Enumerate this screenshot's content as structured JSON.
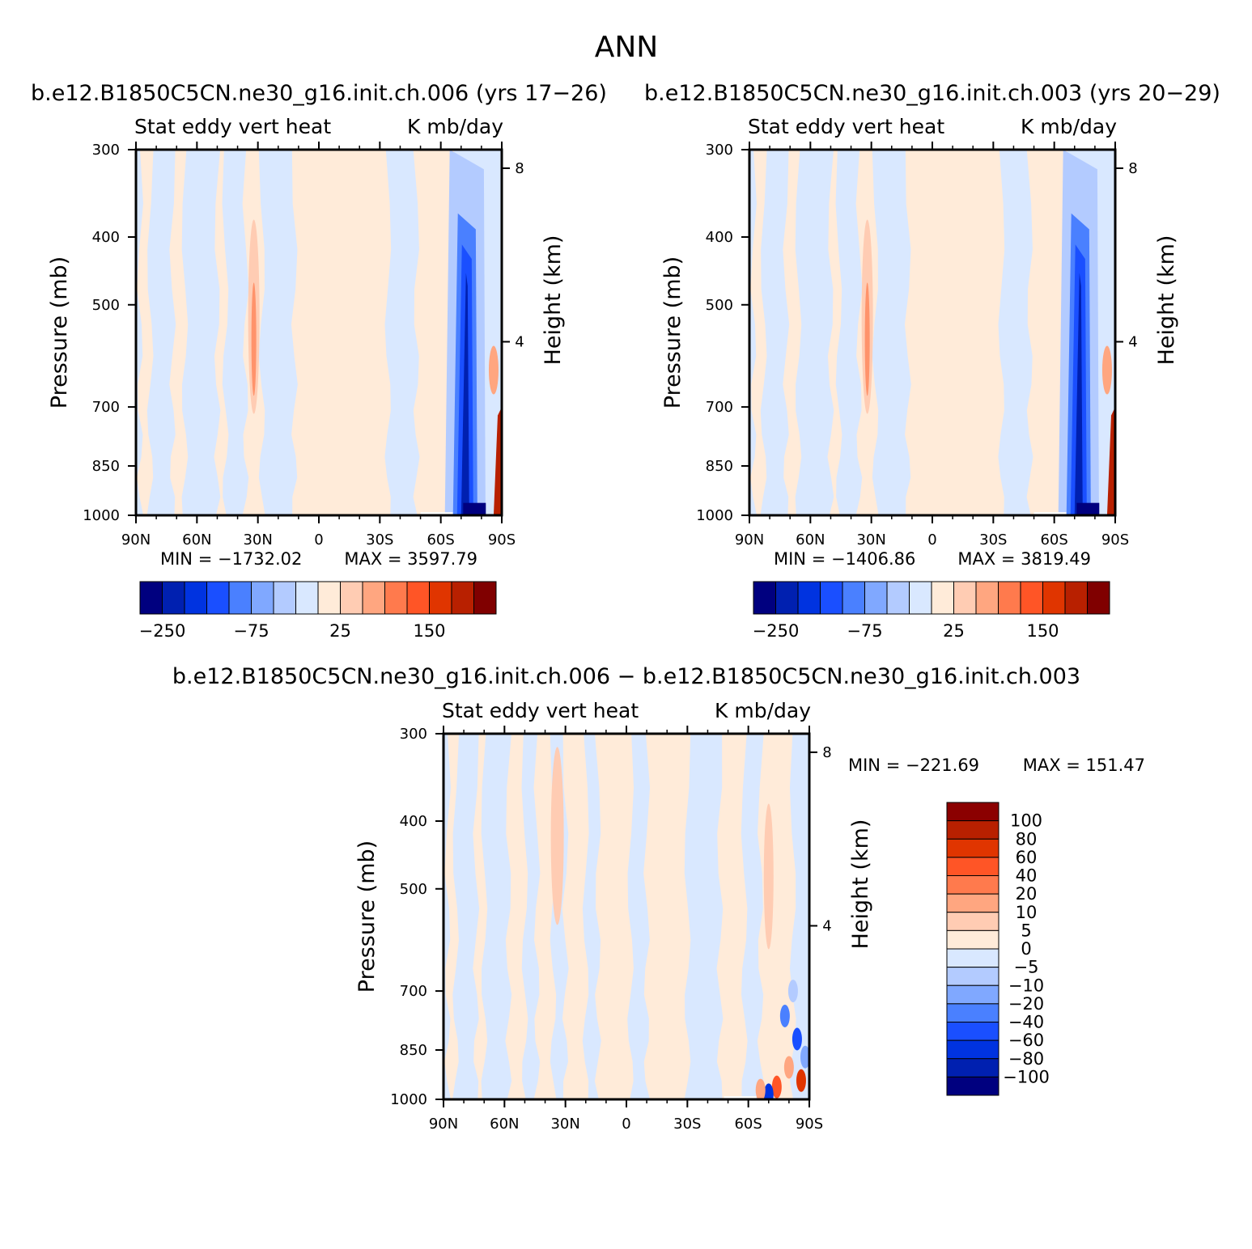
{
  "figure": {
    "title": "ANN"
  },
  "chart_data": [
    {
      "type": "heatmap",
      "title": "b.e12.B1850C5CN.ne30_g16.init.ch.006 (yrs 17-26)",
      "variable": "Stat eddy vert heat",
      "units": "K mb/day",
      "xlabel": "",
      "ylabel": "Pressure (mb)",
      "ylabel_right": "Height (km)",
      "x_ticks": [
        "90N",
        "60N",
        "30N",
        "0",
        "30S",
        "60S",
        "90S"
      ],
      "y_ticks": [
        300,
        400,
        500,
        700,
        850,
        1000
      ],
      "y_right_ticks": [
        8,
        4
      ],
      "xlim": [
        90,
        -90
      ],
      "ylim": [
        1000,
        300
      ],
      "y_scale": "log",
      "min_label": "MIN = -1732.02",
      "max_label": "MAX = 3597.79",
      "colorbar": {
        "orientation": "horizontal",
        "colors": [
          "#00007f",
          "#0020b0",
          "#0033e0",
          "#1a4fff",
          "#4a80ff",
          "#80a8ff",
          "#b3cbff",
          "#d9e8ff",
          "#ffebd9",
          "#ffccb3",
          "#ffa680",
          "#ff7a4d",
          "#ff5526",
          "#e03500",
          "#b82000",
          "#800000"
        ],
        "tick_labels": [
          "-250",
          "-75",
          "25",
          "150"
        ]
      },
      "fields": {
        "background": "#d9e8ff",
        "positive_bands": [
          "#ffebd9",
          "#ffccb3",
          "#ffa680",
          "#ff7a4d"
        ],
        "negative_bands": [
          "#d9e8ff",
          "#b3cbff",
          "#4a80ff",
          "#1a4fff",
          "#0020b0",
          "#00007f"
        ],
        "extreme_positive": "#b82000"
      }
    },
    {
      "type": "heatmap",
      "title": "b.e12.B1850C5CN.ne30_g16.init.ch.003 (yrs 20-29)",
      "variable": "Stat eddy vert heat",
      "units": "K mb/day",
      "xlabel": "",
      "ylabel": "Pressure (mb)",
      "ylabel_right": "Height (km)",
      "x_ticks": [
        "90N",
        "60N",
        "30N",
        "0",
        "30S",
        "60S",
        "90S"
      ],
      "y_ticks": [
        300,
        400,
        500,
        700,
        850,
        1000
      ],
      "y_right_ticks": [
        8,
        4
      ],
      "xlim": [
        90,
        -90
      ],
      "ylim": [
        1000,
        300
      ],
      "y_scale": "log",
      "min_label": "MIN = -1406.86",
      "max_label": "MAX = 3819.49",
      "colorbar": {
        "orientation": "horizontal",
        "colors": [
          "#00007f",
          "#0020b0",
          "#0033e0",
          "#1a4fff",
          "#4a80ff",
          "#80a8ff",
          "#b3cbff",
          "#d9e8ff",
          "#ffebd9",
          "#ffccb3",
          "#ffa680",
          "#ff7a4d",
          "#ff5526",
          "#e03500",
          "#b82000",
          "#800000"
        ],
        "tick_labels": [
          "-250",
          "-75",
          "25",
          "150"
        ]
      }
    },
    {
      "type": "heatmap",
      "title": "b.e12.B1850C5CN.ne30_g16.init.ch.006 - b.e12.B1850C5CN.ne30_g16.init.ch.003",
      "variable": "Stat eddy vert heat",
      "units": "K mb/day",
      "xlabel": "",
      "ylabel": "Pressure (mb)",
      "ylabel_right": "Height (km)",
      "x_ticks": [
        "90N",
        "60N",
        "30N",
        "0",
        "30S",
        "60S",
        "90S"
      ],
      "y_ticks": [
        300,
        400,
        500,
        700,
        850,
        1000
      ],
      "y_right_ticks": [
        8,
        4
      ],
      "xlim": [
        90,
        -90
      ],
      "ylim": [
        1000,
        300
      ],
      "y_scale": "log",
      "min_label": "MIN = -221.69",
      "max_label": "MAX = 151.47",
      "colorbar": {
        "orientation": "vertical",
        "colors_top_to_bottom": [
          "#8b0000",
          "#b82000",
          "#e03500",
          "#ff5526",
          "#ff7a4d",
          "#ffa680",
          "#ffccb3",
          "#ffebd9",
          "#d9e8ff",
          "#b3cbff",
          "#80a8ff",
          "#4a80ff",
          "#1a4fff",
          "#0033e0",
          "#0020b0",
          "#00007f"
        ],
        "tick_labels": [
          "100",
          "80",
          "60",
          "40",
          "20",
          "10",
          "5",
          "0",
          "-5",
          "-10",
          "-20",
          "-40",
          "-60",
          "-80",
          "-100"
        ]
      }
    }
  ]
}
